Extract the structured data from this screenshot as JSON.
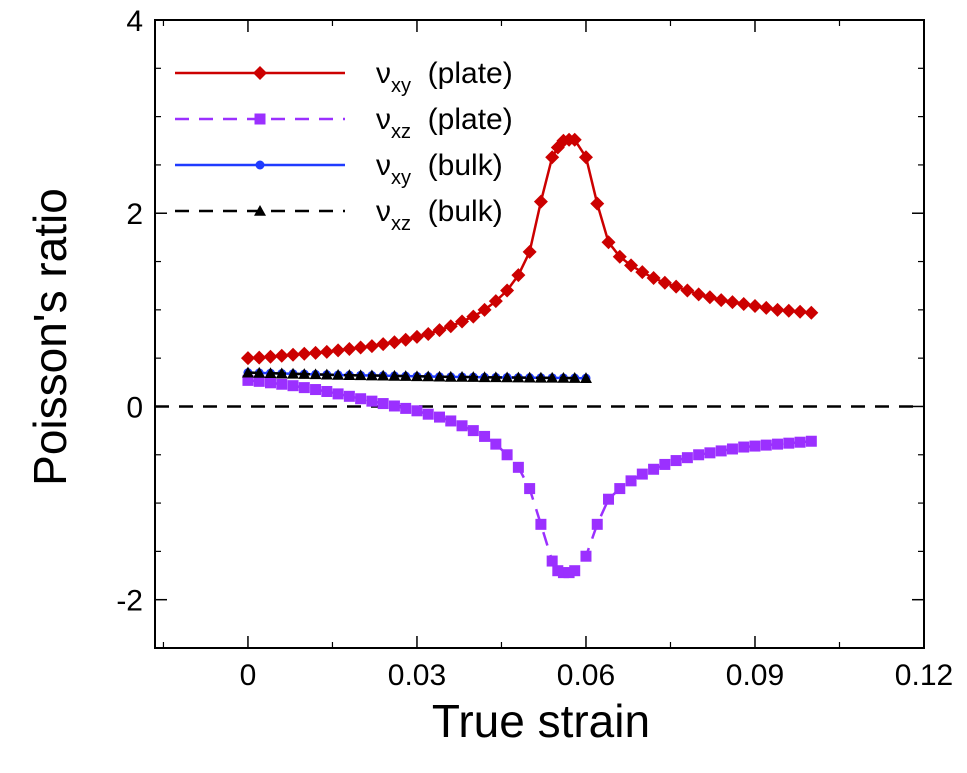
{
  "chart_data": {
    "type": "line",
    "title": "",
    "xlabel": "True strain",
    "ylabel": "Poisson's ratio",
    "xlim": [
      -0.0165,
      0.12
    ],
    "ylim": [
      -2.5,
      4
    ],
    "xticks": [
      0,
      0.03,
      0.06,
      0.09,
      0.12
    ],
    "xtick_labels": [
      "0",
      "0.03",
      "0.06",
      "0.09",
      "0.12"
    ],
    "yticks": [
      -2,
      0,
      2,
      4
    ],
    "ytick_labels": [
      "-2",
      "0",
      "2",
      "4"
    ],
    "grid": false,
    "legend_position": "top-left",
    "reference_line": {
      "y": 0,
      "style": "dashed",
      "color": "#000000"
    },
    "series": [
      {
        "name": "νxy (plate)",
        "symbol": "ν",
        "subscript": "xy",
        "suffix": "(plate)",
        "color": "#cc0000",
        "line": "solid",
        "marker": "diamond",
        "x": [
          0,
          0.002,
          0.004,
          0.006,
          0.008,
          0.01,
          0.012,
          0.014,
          0.016,
          0.018,
          0.02,
          0.022,
          0.024,
          0.026,
          0.028,
          0.03,
          0.032,
          0.034,
          0.036,
          0.038,
          0.04,
          0.042,
          0.044,
          0.046,
          0.048,
          0.05,
          0.052,
          0.054,
          0.055,
          0.056,
          0.057,
          0.058,
          0.06,
          0.062,
          0.064,
          0.066,
          0.068,
          0.07,
          0.072,
          0.074,
          0.076,
          0.078,
          0.08,
          0.082,
          0.084,
          0.086,
          0.088,
          0.09,
          0.092,
          0.094,
          0.096,
          0.098,
          0.1
        ],
        "y": [
          0.5,
          0.505,
          0.515,
          0.525,
          0.535,
          0.545,
          0.555,
          0.565,
          0.58,
          0.595,
          0.61,
          0.625,
          0.645,
          0.665,
          0.69,
          0.72,
          0.75,
          0.79,
          0.83,
          0.88,
          0.93,
          1.0,
          1.09,
          1.2,
          1.36,
          1.6,
          2.12,
          2.58,
          2.68,
          2.75,
          2.76,
          2.76,
          2.58,
          2.1,
          1.7,
          1.55,
          1.46,
          1.39,
          1.33,
          1.28,
          1.24,
          1.2,
          1.16,
          1.13,
          1.1,
          1.08,
          1.06,
          1.04,
          1.02,
          1.0,
          0.99,
          0.98,
          0.97
        ]
      },
      {
        "name": "νxz (plate)",
        "symbol": "ν",
        "subscript": "xz",
        "suffix": "(plate)",
        "color": "#9b30ff",
        "line": "dashed",
        "marker": "square",
        "x": [
          0,
          0.002,
          0.004,
          0.006,
          0.008,
          0.01,
          0.012,
          0.014,
          0.016,
          0.018,
          0.02,
          0.022,
          0.024,
          0.026,
          0.028,
          0.03,
          0.032,
          0.034,
          0.036,
          0.038,
          0.04,
          0.042,
          0.044,
          0.046,
          0.048,
          0.05,
          0.052,
          0.054,
          0.055,
          0.056,
          0.057,
          0.058,
          0.06,
          0.062,
          0.064,
          0.066,
          0.068,
          0.07,
          0.072,
          0.074,
          0.076,
          0.078,
          0.08,
          0.082,
          0.084,
          0.086,
          0.088,
          0.09,
          0.092,
          0.094,
          0.096,
          0.098,
          0.1
        ],
        "y": [
          0.27,
          0.26,
          0.245,
          0.23,
          0.215,
          0.195,
          0.175,
          0.155,
          0.13,
          0.105,
          0.08,
          0.055,
          0.03,
          0.005,
          -0.02,
          -0.045,
          -0.08,
          -0.11,
          -0.15,
          -0.2,
          -0.25,
          -0.31,
          -0.39,
          -0.5,
          -0.63,
          -0.85,
          -1.22,
          -1.6,
          -1.7,
          -1.72,
          -1.72,
          -1.7,
          -1.55,
          -1.22,
          -0.96,
          -0.85,
          -0.77,
          -0.7,
          -0.65,
          -0.6,
          -0.56,
          -0.53,
          -0.5,
          -0.48,
          -0.46,
          -0.44,
          -0.42,
          -0.41,
          -0.4,
          -0.39,
          -0.38,
          -0.37,
          -0.36
        ]
      },
      {
        "name": "νxy (bulk)",
        "symbol": "ν",
        "subscript": "xy",
        "suffix": "(bulk)",
        "color": "#1f3bff",
        "line": "solid",
        "marker": "circle",
        "x": [
          0,
          0.002,
          0.004,
          0.006,
          0.008,
          0.01,
          0.012,
          0.014,
          0.016,
          0.018,
          0.02,
          0.022,
          0.024,
          0.026,
          0.028,
          0.03,
          0.032,
          0.034,
          0.036,
          0.038,
          0.04,
          0.042,
          0.044,
          0.046,
          0.048,
          0.05,
          0.052,
          0.054,
          0.056,
          0.058,
          0.06
        ],
        "y": [
          0.35,
          0.347,
          0.344,
          0.341,
          0.338,
          0.335,
          0.332,
          0.329,
          0.326,
          0.324,
          0.322,
          0.32,
          0.318,
          0.316,
          0.314,
          0.312,
          0.31,
          0.308,
          0.306,
          0.305,
          0.304,
          0.302,
          0.301,
          0.3,
          0.299,
          0.298,
          0.297,
          0.296,
          0.295,
          0.294,
          0.293
        ]
      },
      {
        "name": "νxz (bulk)",
        "symbol": "ν",
        "subscript": "xz",
        "suffix": "(bulk)",
        "color": "#000000",
        "line": "dashed",
        "marker": "triangle",
        "x": [
          0,
          0.002,
          0.004,
          0.006,
          0.008,
          0.01,
          0.012,
          0.014,
          0.016,
          0.018,
          0.02,
          0.022,
          0.024,
          0.026,
          0.028,
          0.03,
          0.032,
          0.034,
          0.036,
          0.038,
          0.04,
          0.042,
          0.044,
          0.046,
          0.048,
          0.05,
          0.052,
          0.054,
          0.056,
          0.058,
          0.06
        ],
        "y": [
          0.35,
          0.347,
          0.344,
          0.341,
          0.338,
          0.335,
          0.332,
          0.329,
          0.326,
          0.324,
          0.322,
          0.32,
          0.318,
          0.316,
          0.314,
          0.312,
          0.31,
          0.308,
          0.306,
          0.305,
          0.304,
          0.302,
          0.301,
          0.3,
          0.299,
          0.298,
          0.297,
          0.296,
          0.295,
          0.294,
          0.293
        ]
      }
    ]
  }
}
